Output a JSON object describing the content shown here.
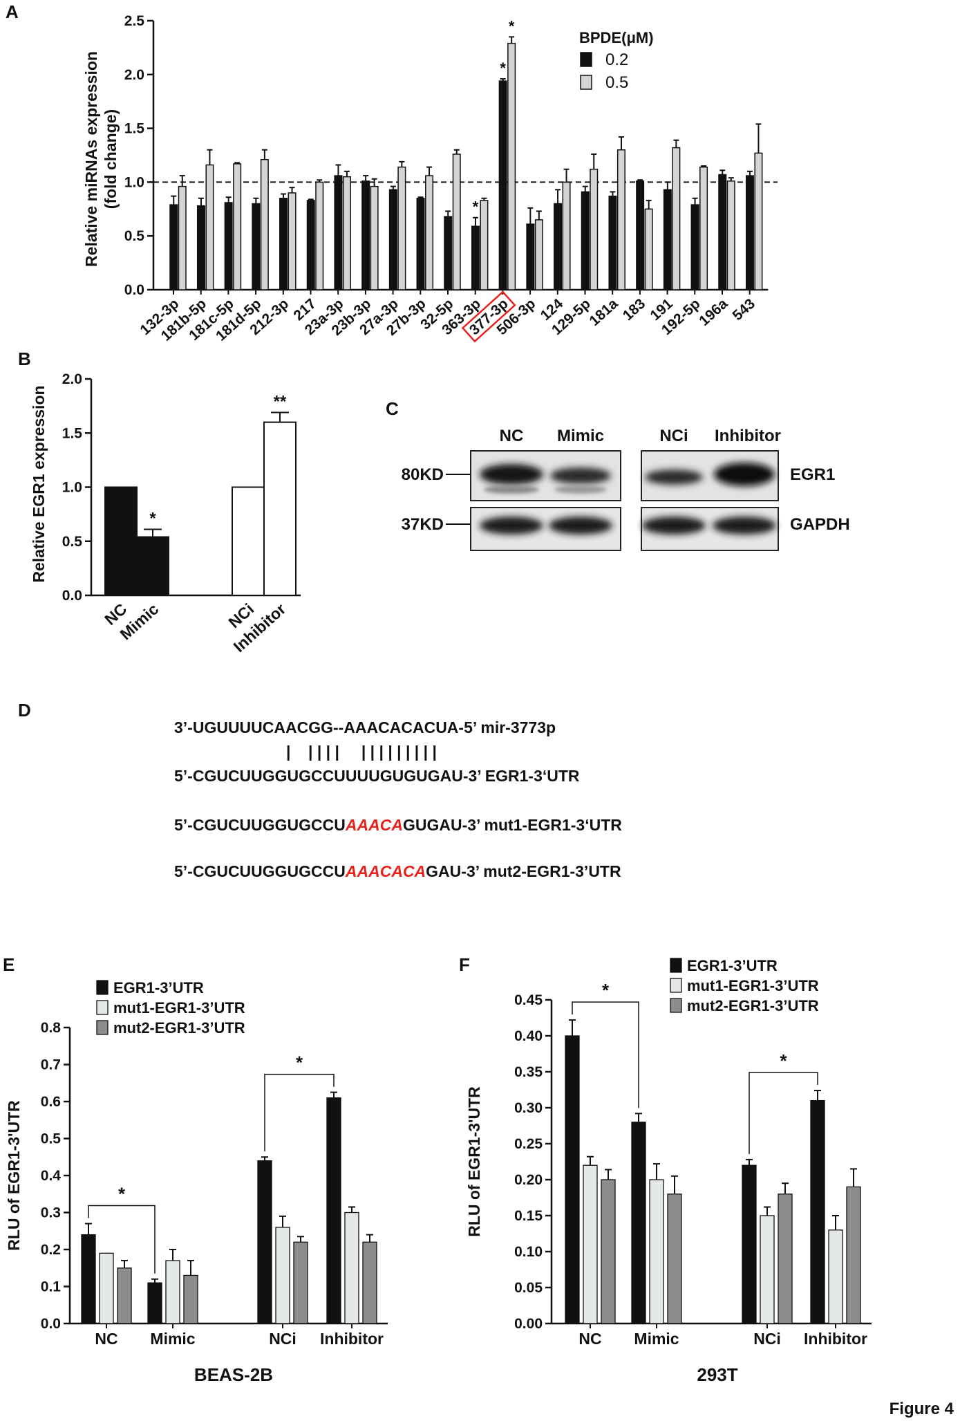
{
  "figure_label": "Figure 4",
  "panel_labels": {
    "A": "A",
    "B": "B",
    "C": "C",
    "D": "D",
    "E": "E",
    "F": "F"
  },
  "chart_data": [
    {
      "panel": "A",
      "type": "bar",
      "xlabel": "",
      "ylabel": "Relative miRNAs expression (fold change)",
      "ylabel_lines": [
        "Relative miRNAs expression",
        "(fold change)"
      ],
      "ylim": [
        0,
        2.5
      ],
      "yticks": [
        "0.0",
        "0.5",
        "1.0",
        "1.5",
        "2.0",
        "2.5"
      ],
      "reference_line": 1.0,
      "legend_title": "BPDE(μM)",
      "highlighted_category": "377-3p",
      "categories": [
        "132-3p",
        "181b-5p",
        "181c-5p",
        "181d-5p",
        "212-3p",
        "217",
        "23a-3p",
        "23b-3p",
        "27a-3p",
        "27b-3p",
        "32-5p",
        "363-3p",
        "377-3p",
        "506-3p",
        "124",
        "129-5p",
        "181a",
        "183",
        "191",
        "192-5p",
        "196a",
        "543"
      ],
      "series": [
        {
          "name": "0.2",
          "color": "#111111",
          "values": [
            0.79,
            0.78,
            0.81,
            0.8,
            0.85,
            0.83,
            1.06,
            1.01,
            0.93,
            0.85,
            0.68,
            0.59,
            1.94,
            0.61,
            0.8,
            0.91,
            0.87,
            1.01,
            0.93,
            0.79,
            1.07,
            1.06
          ],
          "errors": [
            0.08,
            0.07,
            0.05,
            0.05,
            0.04,
            0.01,
            0.1,
            0.05,
            0.03,
            0.01,
            0.05,
            0.08,
            0.02,
            0.15,
            0.13,
            0.05,
            0.04,
            0.01,
            0.07,
            0.06,
            0.04,
            0.04
          ],
          "significance": [
            "",
            "",
            "",
            "",
            "",
            "",
            "",
            "",
            "",
            "",
            "",
            "*",
            "*",
            "",
            "",
            "",
            "",
            "",
            "",
            "",
            "",
            ""
          ]
        },
        {
          "name": "0.5",
          "color": "#d4d4d4",
          "values": [
            0.96,
            1.16,
            1.17,
            1.21,
            0.9,
            1.0,
            1.05,
            0.96,
            1.14,
            1.06,
            1.26,
            0.83,
            2.29,
            0.65,
            1.0,
            1.12,
            1.3,
            0.75,
            1.32,
            1.14,
            1.01,
            1.27
          ],
          "errors": [
            0.1,
            0.14,
            0.01,
            0.09,
            0.05,
            0.02,
            0.05,
            0.07,
            0.05,
            0.08,
            0.04,
            0.02,
            0.06,
            0.08,
            0.12,
            0.14,
            0.12,
            0.08,
            0.07,
            0.01,
            0.03,
            0.27
          ],
          "significance": [
            "",
            "",
            "",
            "",
            "",
            "",
            "",
            "",
            "",
            "",
            "",
            "",
            "*",
            "",
            "",
            "",
            "",
            "",
            "",
            "",
            "",
            ""
          ]
        }
      ]
    },
    {
      "panel": "B",
      "type": "bar",
      "xlabel": "",
      "ylabel": "Relative EGR1 expression",
      "ylim": [
        0,
        2.0
      ],
      "yticks": [
        "0.0",
        "0.5",
        "1.0",
        "1.5",
        "2.0"
      ],
      "categories": [
        "NC",
        "Mimic",
        "NCi",
        "Inhibitor"
      ],
      "values": [
        1.0,
        0.54,
        1.0,
        1.6
      ],
      "errors": [
        0,
        0.07,
        0,
        0.09
      ],
      "colors": [
        "#111111",
        "#111111",
        "#ffffff",
        "#ffffff"
      ],
      "significance": [
        "",
        "*",
        "",
        "**"
      ]
    },
    {
      "panel": "E",
      "type": "bar",
      "title": "BEAS-2B",
      "xlabel": "",
      "ylabel": "RLU of EGR1-3'UTR",
      "ylim": [
        0,
        0.8
      ],
      "yticks": [
        "0.0",
        "0.1",
        "0.2",
        "0.3",
        "0.4",
        "0.5",
        "0.6",
        "0.7",
        "0.8"
      ],
      "categories": [
        "NC",
        "Mimic",
        "NCi",
        "Inhibitor"
      ],
      "series": [
        {
          "name": "EGR1-3’UTR",
          "color": "#111111",
          "values": [
            0.24,
            0.11,
            0.44,
            0.61
          ],
          "errors": [
            0.03,
            0.01,
            0.01,
            0.015
          ]
        },
        {
          "name": "mut1-EGR1-3’UTR",
          "color": "#e4e8e8",
          "values": [
            0.19,
            0.17,
            0.26,
            0.3
          ],
          "errors": [
            0.0,
            0.03,
            0.03,
            0.015
          ]
        },
        {
          "name": "mut2-EGR1-3’UTR",
          "color": "#8c8c8c",
          "values": [
            0.15,
            0.13,
            0.22,
            0.22
          ],
          "errors": [
            0.02,
            0.04,
            0.015,
            0.02
          ]
        }
      ],
      "comparisons": [
        {
          "from": "NC",
          "to": "Mimic",
          "label": "*"
        },
        {
          "from": "NCi",
          "to": "Inhibitor",
          "label": "*"
        }
      ]
    },
    {
      "panel": "F",
      "type": "bar",
      "title": "293T",
      "xlabel": "",
      "ylabel": "RLU of EGR1-3'UTR",
      "ylim": [
        0,
        0.45
      ],
      "yticks": [
        "0.00",
        "0.05",
        "0.10",
        "0.15",
        "0.20",
        "0.25",
        "0.30",
        "0.35",
        "0.40",
        "0.45"
      ],
      "categories": [
        "NC",
        "Mimic",
        "NCi",
        "Inhibitor"
      ],
      "series": [
        {
          "name": "EGR1-3’UTR",
          "color": "#111111",
          "values": [
            0.4,
            0.28,
            0.22,
            0.31
          ],
          "errors": [
            0.022,
            0.012,
            0.008,
            0.014
          ]
        },
        {
          "name": "mut1-EGR1-3’UTR",
          "color": "#e4e8e8",
          "values": [
            0.22,
            0.2,
            0.15,
            0.13
          ],
          "errors": [
            0.012,
            0.022,
            0.012,
            0.02
          ]
        },
        {
          "name": "mut2-EGR1-3’UTR",
          "color": "#8c8c8c",
          "values": [
            0.2,
            0.18,
            0.18,
            0.19
          ],
          "errors": [
            0.014,
            0.025,
            0.015,
            0.025
          ]
        }
      ],
      "comparisons": [
        {
          "from": "NC",
          "to": "Mimic",
          "label": "*"
        },
        {
          "from": "NCi",
          "to": "Inhibitor",
          "label": "*"
        }
      ]
    }
  ],
  "western_blot": {
    "lanes_left": [
      "NC",
      "Mimic"
    ],
    "lanes_right": [
      "NCi",
      "Inhibitor"
    ],
    "markers": [
      "80KD",
      "37KD"
    ],
    "proteins": [
      "EGR1",
      "GAPDH"
    ]
  },
  "sequence_panel": {
    "mirna": {
      "text": "3’-UGUUUUCAACGG--AAACACACUA-5’ mir-3773p"
    },
    "pairing": "|    | | | |     | | | | | | | | |",
    "wild_type": {
      "text": "5’-CGUCUUGGUGCCUUUUGUGUGAU-3’ EGR1-3‘UTR"
    },
    "mut1": {
      "prefix": "5’-CGUCUUGGUGCCU",
      "mutated": "AAACA",
      "suffix": "GUGAU-3’ mut1-EGR1-3‘UTR"
    },
    "mut2": {
      "prefix": "5’-CGUCUUGGUGCCU",
      "mutated": "AAACACA",
      "suffix": "GAU-3’ mut2-EGR1-3’UTR"
    }
  }
}
